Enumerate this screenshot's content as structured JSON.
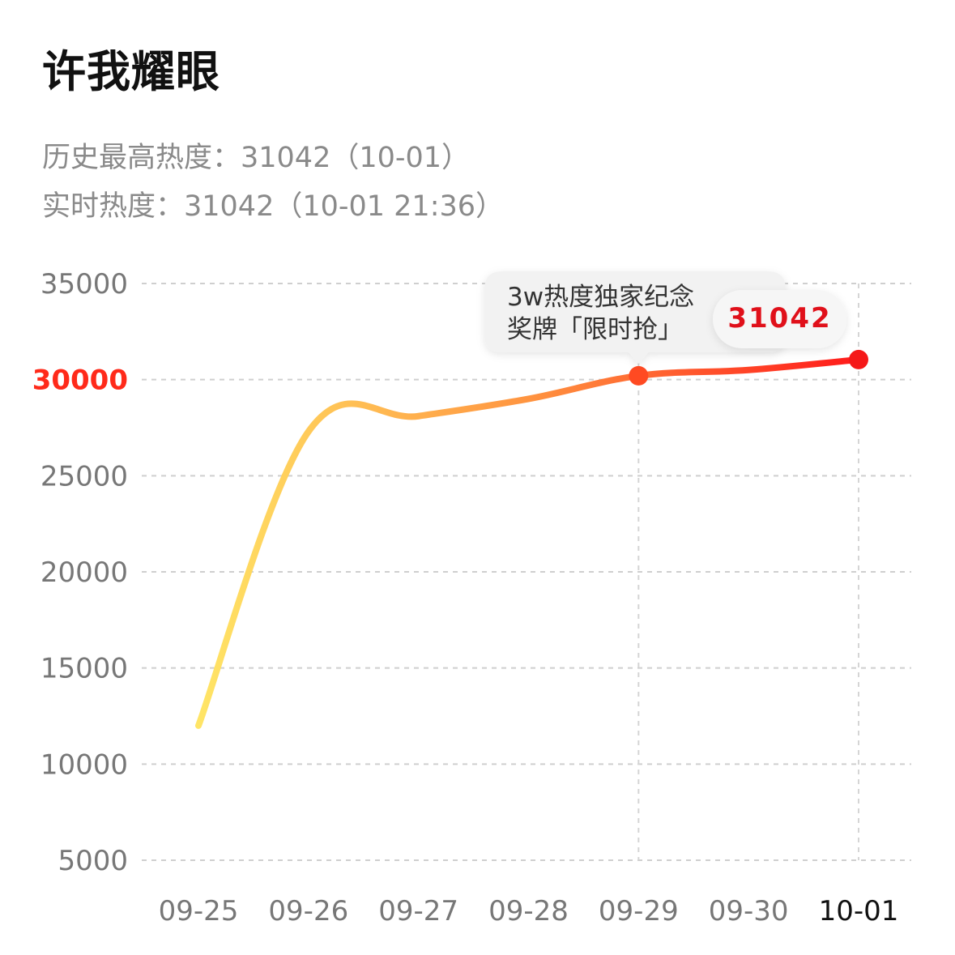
{
  "header": {
    "title": "许我耀眼",
    "peak_label": "历史最高热度：31042（10-01）",
    "realtime_label": "实时热度：31042（10-01 21:36）"
  },
  "chart_data": {
    "type": "line",
    "x": [
      "09-25",
      "09-26",
      "09-27",
      "09-28",
      "09-29",
      "09-30",
      "10-01"
    ],
    "y_ticks": [
      35000,
      30000,
      25000,
      20000,
      15000,
      10000,
      5000
    ],
    "highlight_y_tick": 30000,
    "highlight_x_tick": "10-01",
    "ylim": [
      5000,
      35000
    ],
    "grid": true,
    "points": [
      {
        "x": "09-25",
        "y": 12000
      },
      {
        "x": "09-26",
        "y": 27300
      },
      {
        "x": "09-27",
        "y": 28100
      },
      {
        "x": "09-28",
        "y": 29000
      },
      {
        "x": "09-29",
        "y": 30200
      },
      {
        "x": "09-30",
        "y": 30500
      },
      {
        "x": "10-01",
        "y": 31042
      }
    ],
    "markers": [
      "09-29",
      "10-01"
    ],
    "annotation": {
      "at": "09-29",
      "lines": [
        "3w热度独家纪念",
        "奖牌「限时抢」"
      ],
      "value": "31042"
    },
    "colors": {
      "start": "#ffe566",
      "mid": "#ff9440",
      "end": "#ff1a1a"
    }
  }
}
